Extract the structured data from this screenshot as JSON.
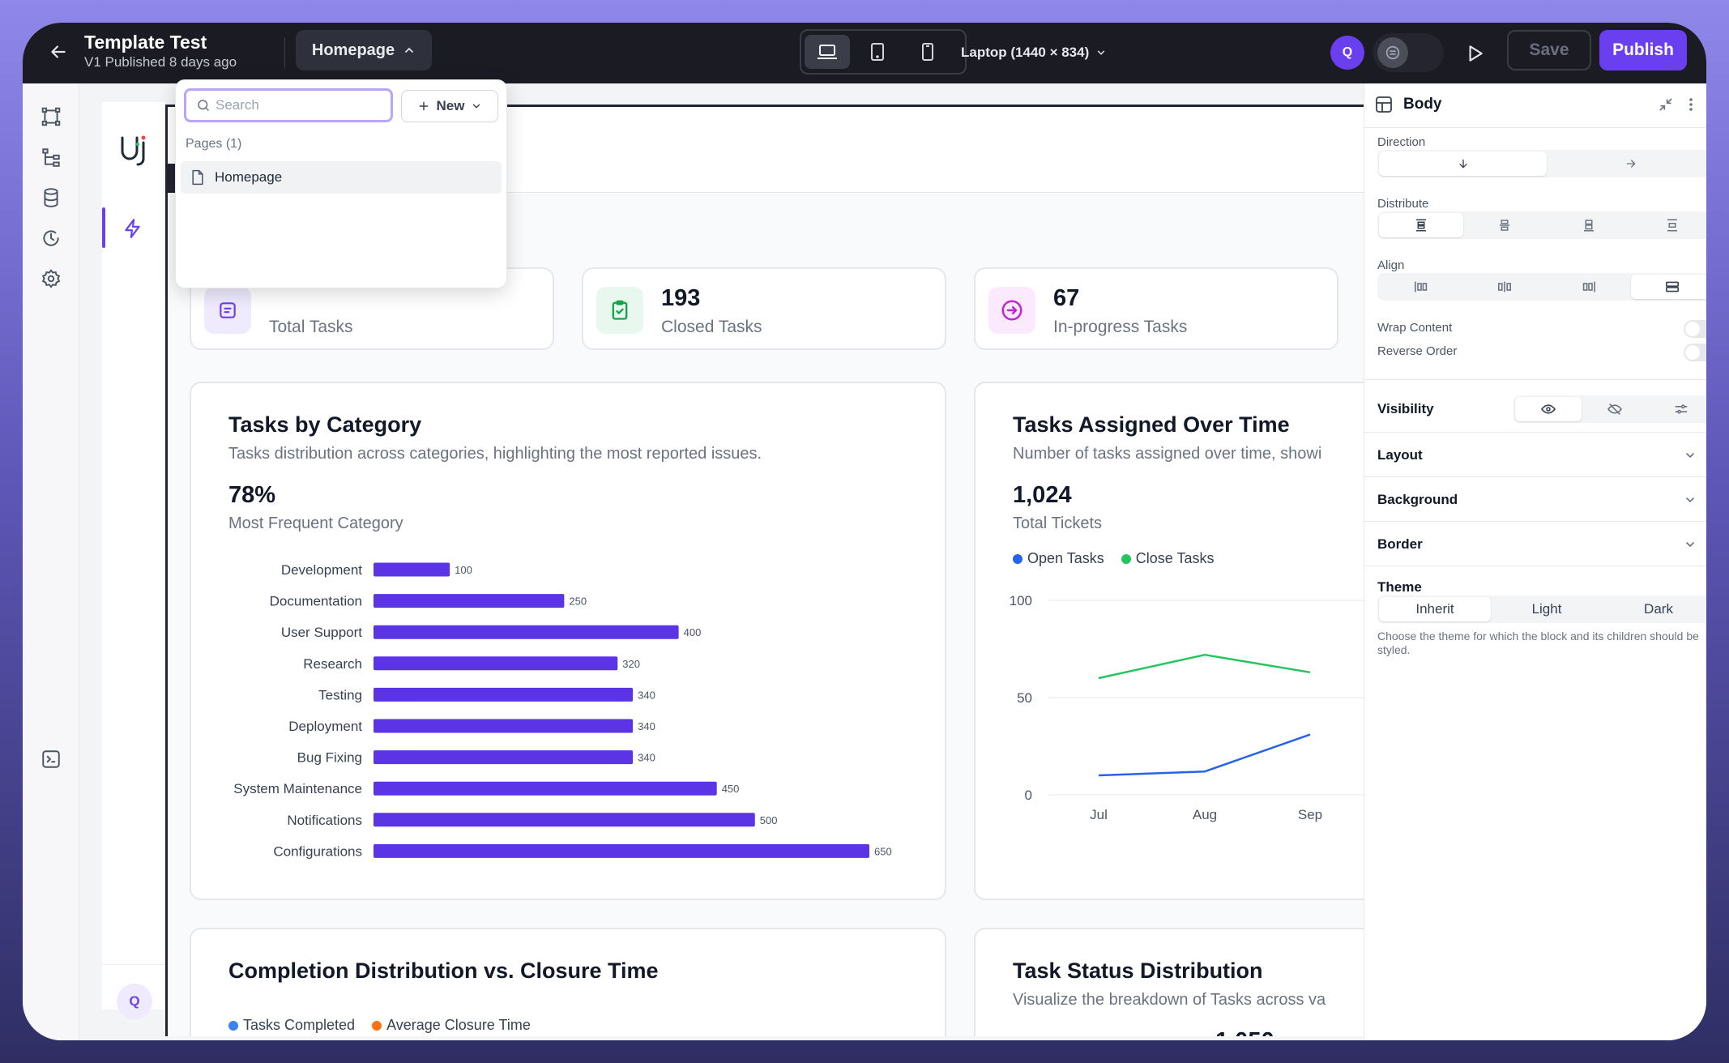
{
  "topbar": {
    "app_title": "Template Test",
    "app_subtitle": "V1 Published 8 days ago",
    "page_selector": "Homepage",
    "viewport": "Laptop (1440 × 834)",
    "avatar_initial": "Q",
    "save_label": "Save",
    "publish_label": "Publish"
  },
  "leftnav": {
    "icons": [
      "frame-icon",
      "tree-icon",
      "database-icon",
      "history-icon",
      "settings-icon",
      "terminal-icon"
    ]
  },
  "rail": {
    "avatar_initial": "Q"
  },
  "pages_popover": {
    "search_placeholder": "Search",
    "new_label": "New",
    "section_label": "Pages (1)",
    "items": [
      {
        "label": "Homepage"
      }
    ]
  },
  "stats": [
    {
      "value": "",
      "label": "Total Tasks",
      "color": "#6a3ff0",
      "bg": "#efeafe"
    },
    {
      "value": "193",
      "label": "Closed Tasks",
      "color": "#16a34a",
      "bg": "#e8f8ee"
    },
    {
      "value": "67",
      "label": "In-progress Tasks",
      "color": "#c026d3",
      "bg": "#fbeafe"
    }
  ],
  "category_card": {
    "title": "Tasks by Category",
    "subtitle": "Tasks distribution across categories, highlighting the most reported issues.",
    "big_value": "78%",
    "big_label": "Most Frequent Category"
  },
  "time_card": {
    "title": "Tasks Assigned Over Time",
    "subtitle": "Number of tasks assigned over time, showi",
    "big_value": "1,024",
    "big_label": "Total Tickets"
  },
  "completion_card": {
    "title": "Completion Distribution vs. Closure Time",
    "legend": [
      {
        "label": "Tasks Completed",
        "color": "#3b82f6"
      },
      {
        "label": "Average Closure Time",
        "color": "#f97316"
      }
    ]
  },
  "status_card": {
    "title": "Task Status Distribution",
    "subtitle": "Visualize the breakdown of Tasks across va",
    "partial_value": "1,050"
  },
  "chart_data": [
    {
      "type": "bar",
      "orientation": "horizontal",
      "categories": [
        "Development",
        "Documentation",
        "User Support",
        "Research",
        "Testing",
        "Deployment",
        "Bug Fixing",
        "System Maintenance",
        "Notifications",
        "Configurations"
      ],
      "values": [
        100,
        250,
        400,
        320,
        340,
        340,
        340,
        450,
        500,
        650
      ],
      "color": "#5b34e6",
      "xlim": [
        0,
        650
      ]
    },
    {
      "type": "line",
      "categories": [
        "Jul",
        "Aug",
        "Sep"
      ],
      "yticks": [
        100,
        50,
        0
      ],
      "ylim": [
        0,
        100
      ],
      "legend_position": "top-left",
      "series": [
        {
          "name": "Open Tasks",
          "color": "#2563eb",
          "values": [
            10,
            12,
            31
          ]
        },
        {
          "name": "Close Tasks",
          "color": "#22c55e",
          "values": [
            60,
            72,
            63
          ]
        }
      ]
    }
  ],
  "right_panel": {
    "title": "Body",
    "direction_label": "Direction",
    "distribute_label": "Distribute",
    "align_label": "Align",
    "wrap_label": "Wrap Content",
    "reverse_label": "Reverse Order",
    "visibility_label": "Visibility",
    "sections": [
      "Layout",
      "Background",
      "Border"
    ],
    "theme_label": "Theme",
    "theme_options": [
      "Inherit",
      "Light",
      "Dark"
    ],
    "theme_help": "Choose the theme for which the block and its children should be styled."
  }
}
